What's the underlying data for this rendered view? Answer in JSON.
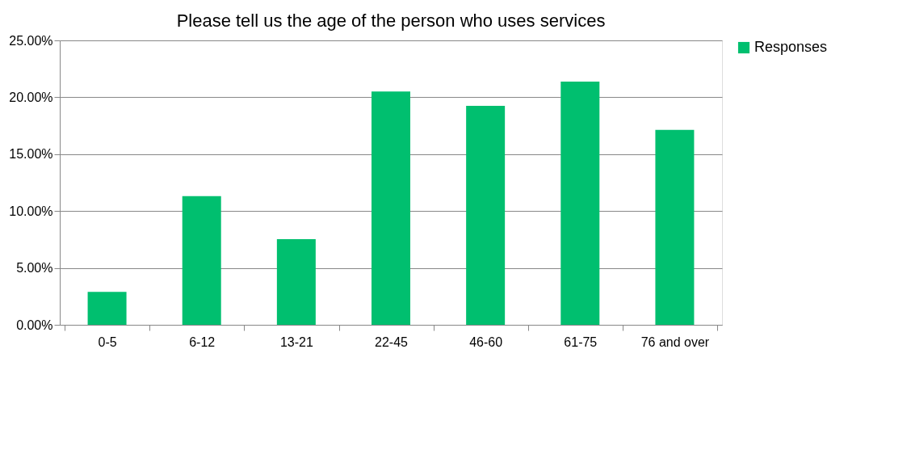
{
  "chart_data": {
    "type": "bar",
    "title": "Please tell us the age of the person who uses services",
    "categories": [
      "0-5",
      "6-12",
      "13-21",
      "22-45",
      "46-60",
      "61-75",
      "76 and over"
    ],
    "series": [
      {
        "name": "Responses",
        "color": "#00bf6f",
        "values": [
          2.9,
          11.31,
          7.52,
          20.5,
          19.24,
          21.38,
          17.14
        ]
      }
    ],
    "ylim": [
      0,
      25
    ],
    "yticks": [
      {
        "value": 0,
        "label": "0.00%"
      },
      {
        "value": 5,
        "label": "5.00%"
      },
      {
        "value": 10,
        "label": "10.00%"
      },
      {
        "value": 15,
        "label": "15.00%"
      },
      {
        "value": 20,
        "label": "20.00%"
      },
      {
        "value": 25,
        "label": "25.00%"
      }
    ],
    "grid": "y",
    "legend": "right"
  }
}
